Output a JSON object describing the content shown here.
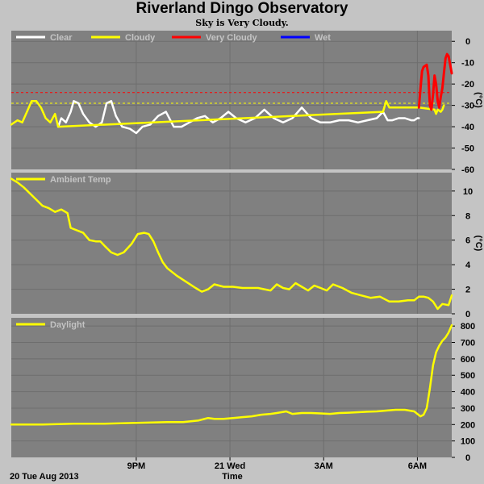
{
  "page": {
    "title": "Riverland Dingo Observatory",
    "subtitle": "Sky is Very Cloudy.",
    "date_label": "20 Tue Aug 2013",
    "time_label": "Time"
  },
  "colors": {
    "background": "#c4c4c4",
    "plot_background": "#808080",
    "grid": "#6e6e6e",
    "clear": "#ffffff",
    "cloudy": "#ffff00",
    "very_cloudy": "#ff0000",
    "wet": "#0000ff"
  },
  "chart_data": [
    {
      "type": "line",
      "name": "sky",
      "ylabel": "(°C)",
      "ylim": [
        -60,
        5
      ],
      "yticks": [
        0,
        -10,
        -20,
        -30,
        -40,
        -50,
        -60
      ],
      "thresholds": [
        {
          "value": -24,
          "color": "#ff0000"
        },
        {
          "value": -29,
          "color": "#ffff00"
        }
      ],
      "legend": [
        {
          "label": "Clear",
          "color": "#ffffff"
        },
        {
          "label": "Cloudy",
          "color": "#ffff00"
        },
        {
          "label": "Very Cloudy",
          "color": "#ff0000"
        },
        {
          "label": "Wet",
          "color": "#0000ff"
        }
      ],
      "series": [
        {
          "color": "#ffffff",
          "x": [
            18.5,
            18.6,
            18.75,
            18.9,
            19.0,
            19.15,
            19.3,
            19.5,
            19.7,
            19.9,
            20.05,
            20.2,
            20.35,
            20.55,
            20.8,
            21.0,
            21.2,
            21.45,
            21.7,
            21.95,
            22.2,
            22.45,
            22.7,
            22.95,
            23.2,
            23.45,
            23.7,
            23.95,
            24.2,
            24.5,
            24.8,
            25.1,
            25.4,
            25.7,
            26.0,
            26.3,
            26.6,
            26.9,
            27.2,
            27.5,
            27.8,
            28.1,
            28.4,
            28.7,
            28.9,
            29.05,
            29.2,
            29.4,
            29.6,
            29.8,
            29.9,
            30.0,
            30.05
          ],
          "y": [
            -40,
            -36,
            -38,
            -33,
            -28,
            -29,
            -34,
            -38,
            -40,
            -38,
            -29,
            -28,
            -35,
            -40,
            -41,
            -43,
            -40,
            -39,
            -35,
            -33,
            -40,
            -40,
            -38,
            -36,
            -35,
            -38,
            -36,
            -33,
            -36,
            -38,
            -36,
            -32,
            -36,
            -38,
            -36,
            -31,
            -36,
            -38,
            -38,
            -37,
            -37,
            -38,
            -37,
            -36,
            -33,
            -37,
            -37,
            -36,
            -36,
            -37,
            -37,
            -36,
            -36
          ]
        },
        {
          "color": "#ffff00",
          "x": [
            17.0,
            17.2,
            17.35,
            17.5,
            17.65,
            17.8,
            17.95,
            18.1,
            18.25,
            18.4,
            18.5,
            28.9,
            29.0,
            29.1,
            30.05,
            30.55,
            30.6,
            30.65,
            30.75,
            30.8,
            30.85
          ],
          "y": [
            -39,
            -37,
            -38,
            -33,
            -28,
            -28,
            -31,
            -36,
            -38,
            -34,
            -40,
            -33,
            -28,
            -31,
            -31,
            -32,
            -34,
            -32,
            -33,
            -32,
            -30
          ]
        },
        {
          "color": "#ff0000",
          "x": [
            30.05,
            30.1,
            30.15,
            30.2,
            30.3,
            30.35,
            30.4,
            30.45,
            30.5,
            30.55,
            30.6,
            30.65,
            30.7,
            30.75,
            30.8,
            30.85,
            30.9,
            30.95,
            31.0,
            31.05,
            31.1
          ],
          "y": [
            -31,
            -22,
            -14,
            -12,
            -11,
            -16,
            -30,
            -32,
            -25,
            -16,
            -20,
            -28,
            -31,
            -26,
            -22,
            -15,
            -8,
            -6,
            -7,
            -11,
            -15
          ]
        }
      ]
    },
    {
      "type": "line",
      "name": "ambient",
      "ylabel": "(°C)",
      "ylim": [
        0,
        11.5
      ],
      "yticks": [
        10,
        8,
        6,
        4,
        2,
        0
      ],
      "legend": [
        {
          "label": "Ambient Temp",
          "color": "#ffff00"
        }
      ],
      "series": [
        {
          "color": "#ffff00",
          "x": [
            17.0,
            17.2,
            17.4,
            17.6,
            17.8,
            18.0,
            18.2,
            18.4,
            18.6,
            18.8,
            18.9,
            19.0,
            19.3,
            19.5,
            19.7,
            19.85,
            20.0,
            20.2,
            20.4,
            20.6,
            20.85,
            21.05,
            21.25,
            21.4,
            21.55,
            21.7,
            21.85,
            22.0,
            22.3,
            22.6,
            22.9,
            23.1,
            23.3,
            23.5,
            23.8,
            24.1,
            24.4,
            24.7,
            24.9,
            25.1,
            25.3,
            25.5,
            25.7,
            25.9,
            26.1,
            26.3,
            26.5,
            26.7,
            26.9,
            27.1,
            27.3,
            27.6,
            27.9,
            28.2,
            28.5,
            28.8,
            29.1,
            29.4,
            29.7,
            29.9,
            30.05,
            30.2,
            30.35,
            30.5,
            30.65,
            30.8,
            31.0,
            31.1
          ],
          "y": [
            11.0,
            10.7,
            10.3,
            9.8,
            9.3,
            8.8,
            8.6,
            8.3,
            8.5,
            8.2,
            7.0,
            6.9,
            6.6,
            6.0,
            5.9,
            5.9,
            5.5,
            5.0,
            4.8,
            5.0,
            5.7,
            6.5,
            6.6,
            6.5,
            5.9,
            5.0,
            4.2,
            3.7,
            3.1,
            2.6,
            2.1,
            1.8,
            2.0,
            2.4,
            2.2,
            2.2,
            2.1,
            2.1,
            2.1,
            2.0,
            1.9,
            2.4,
            2.1,
            2.0,
            2.5,
            2.2,
            1.9,
            2.3,
            2.1,
            1.9,
            2.4,
            2.1,
            1.7,
            1.5,
            1.3,
            1.4,
            1.0,
            1.0,
            1.1,
            1.1,
            1.4,
            1.4,
            1.3,
            1.0,
            0.4,
            0.8,
            0.7,
            1.5
          ]
        }
      ]
    },
    {
      "type": "line",
      "name": "daylight",
      "ylim": [
        0,
        850
      ],
      "yticks": [
        800,
        700,
        600,
        500,
        400,
        300,
        200,
        100,
        0
      ],
      "legend": [
        {
          "label": "Daylight",
          "color": "#ffff00"
        }
      ],
      "series": [
        {
          "color": "#ffff00",
          "x": [
            17.0,
            18.0,
            19.0,
            20.0,
            21.0,
            22.0,
            22.5,
            23.0,
            23.3,
            23.5,
            23.8,
            24.1,
            24.4,
            24.7,
            25.0,
            25.3,
            25.5,
            25.8,
            26.0,
            26.3,
            26.6,
            26.9,
            27.2,
            27.5,
            27.8,
            28.1,
            28.4,
            28.7,
            29.0,
            29.3,
            29.6,
            29.9,
            30.0,
            30.1,
            30.2,
            30.3,
            30.4,
            30.5,
            30.6,
            30.7,
            30.8,
            30.9,
            31.0,
            31.1
          ],
          "y": [
            200,
            200,
            205,
            205,
            210,
            215,
            215,
            225,
            240,
            235,
            235,
            240,
            245,
            250,
            260,
            265,
            270,
            280,
            265,
            270,
            270,
            268,
            265,
            270,
            272,
            275,
            278,
            280,
            285,
            290,
            290,
            280,
            265,
            250,
            260,
            300,
            420,
            560,
            640,
            680,
            710,
            730,
            760,
            805
          ]
        }
      ]
    }
  ],
  "x_axis": {
    "xlim": [
      17.0,
      31.1
    ],
    "ticks": [
      {
        "value": 21,
        "label": "9PM"
      },
      {
        "value": 24,
        "label": "21 Wed"
      },
      {
        "value": 27,
        "label": "3AM"
      },
      {
        "value": 30,
        "label": "6AM"
      }
    ]
  }
}
